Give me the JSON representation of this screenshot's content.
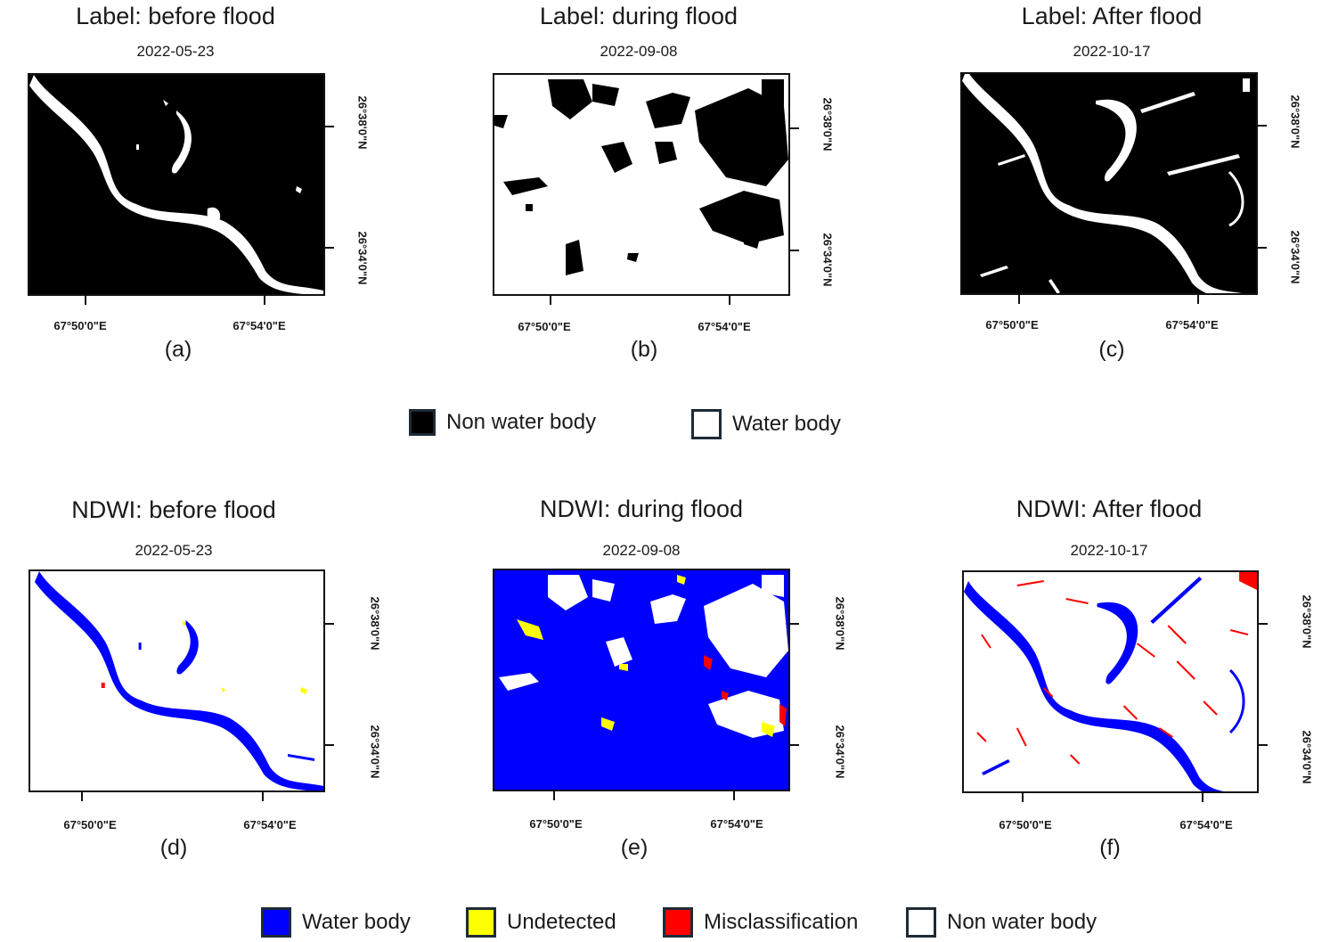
{
  "top_row": {
    "panels": [
      {
        "title": "Label: before flood",
        "date": "2022-05-23",
        "caption": "(a)"
      },
      {
        "title": "Label: during flood",
        "date": "2022-09-08",
        "caption": "(b)"
      },
      {
        "title": "Label: After flood",
        "date": "2022-10-17",
        "caption": "(c)"
      }
    ],
    "legend": [
      {
        "label": "Non water body",
        "color": "#000000"
      },
      {
        "label": "Water body",
        "color": "#ffffff"
      }
    ]
  },
  "bottom_row": {
    "panels": [
      {
        "title": "NDWI: before flood",
        "date": "2022-05-23",
        "caption": "(d)"
      },
      {
        "title": "NDWI: during flood",
        "date": "2022-09-08",
        "caption": "(e)"
      },
      {
        "title": "NDWI: After flood",
        "date": "2022-10-17",
        "caption": "(f)"
      }
    ],
    "legend": [
      {
        "label": "Water body",
        "color": "#0000ff"
      },
      {
        "label": "Undetected",
        "color": "#ffff00"
      },
      {
        "label": "Misclassification",
        "color": "#ff0000"
      },
      {
        "label": "Non water body",
        "color": "#ffffff"
      }
    ]
  },
  "axes": {
    "lon_labels": [
      "67°50'0\"E",
      "67°54'0\"E"
    ],
    "lat_labels": [
      "26°38'0\"N",
      "26°34'0\"N"
    ]
  },
  "colors": {
    "water": "#0000ff",
    "undetected": "#ffff00",
    "misclassification": "#ff0000",
    "non_water": "#000000"
  }
}
